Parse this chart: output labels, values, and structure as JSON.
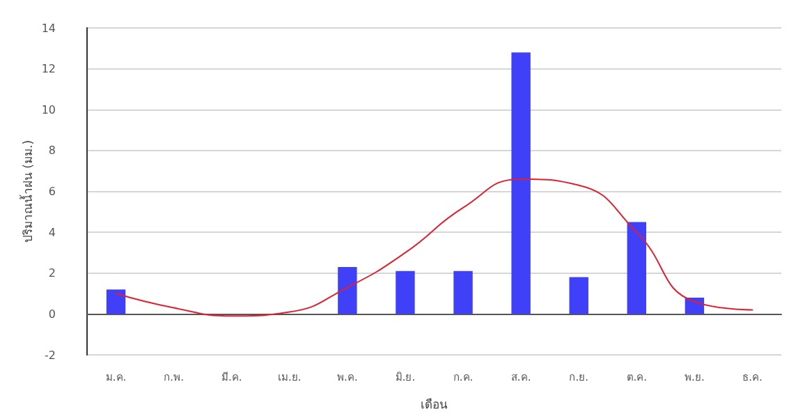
{
  "chart_data": {
    "type": "bar",
    "xlabel": "เดือน",
    "ylabel": "ปริมาณน้ำฝน (มม.)",
    "categories": [
      "ม.ค.",
      "ก.พ.",
      "มี.ค.",
      "เม.ย.",
      "พ.ค.",
      "มิ.ย.",
      "ก.ค.",
      "ส.ค.",
      "ก.ย.",
      "ต.ค.",
      "พ.ย.",
      "ธ.ค."
    ],
    "series": [
      {
        "color": "#4040f8",
        "values": [
          1.2,
          0,
          0,
          0,
          2.3,
          2.1,
          2.1,
          12.8,
          1.8,
          4.5,
          0.8,
          0
        ]
      },
      {
        "type": "line",
        "color": "#e02030",
        "values": [
          1.0,
          0.3,
          -0.1,
          0.1,
          1.3,
          3.0,
          5.2,
          6.6,
          6.3,
          4.0,
          0.6,
          0.2
        ]
      }
    ],
    "ylim": [
      -2,
      14
    ],
    "yticks": [
      -2,
      0,
      2,
      4,
      6,
      8,
      10,
      12,
      14
    ],
    "grid": "y",
    "marker": "none"
  }
}
